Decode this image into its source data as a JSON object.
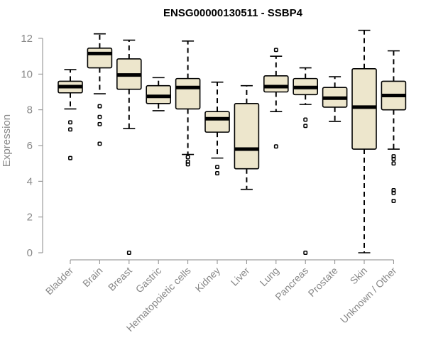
{
  "chart_data": {
    "type": "boxplot",
    "title": "ENSG00000130511 - SSBP4",
    "xlabel": "",
    "ylabel": "Expression",
    "ylim": [
      0,
      12.5
    ],
    "yticks": [
      0,
      2,
      4,
      6,
      8,
      10,
      12
    ],
    "box_color": "#ede6cc",
    "categories": [
      "Bladder",
      "Brain",
      "Breast",
      "Gastric",
      "Hematopoietic cells",
      "Kidney",
      "Liver",
      "Lung",
      "Pancreas",
      "Prostate",
      "Skin",
      "Unknown / Other"
    ],
    "boxes": [
      {
        "min": 8.05,
        "q1": 8.95,
        "median": 9.3,
        "q3": 9.6,
        "max": 10.25,
        "outliers": [
          7.3,
          6.9,
          5.3
        ]
      },
      {
        "min": 8.9,
        "q1": 10.35,
        "median": 11.15,
        "q3": 11.45,
        "max": 12.25,
        "outliers": [
          8.2,
          7.6,
          7.2,
          6.1
        ]
      },
      {
        "min": 6.95,
        "q1": 9.15,
        "median": 9.95,
        "q3": 10.85,
        "max": 11.9,
        "outliers": [
          0.0
        ]
      },
      {
        "min": 7.95,
        "q1": 8.35,
        "median": 8.75,
        "q3": 9.35,
        "max": 9.8,
        "outliers": []
      },
      {
        "min": 5.5,
        "q1": 8.05,
        "median": 9.25,
        "q3": 9.75,
        "max": 11.85,
        "outliers": [
          5.35,
          5.1,
          4.95
        ]
      },
      {
        "min": 5.3,
        "q1": 6.75,
        "median": 7.5,
        "q3": 7.9,
        "max": 9.55,
        "outliers": [
          4.8,
          4.45
        ]
      },
      {
        "min": 3.55,
        "q1": 4.7,
        "median": 5.8,
        "q3": 8.35,
        "max": 9.35,
        "outliers": []
      },
      {
        "min": 7.9,
        "q1": 9.0,
        "median": 9.3,
        "q3": 9.9,
        "max": 11.0,
        "outliers": [
          11.35,
          5.95
        ]
      },
      {
        "min": 8.3,
        "q1": 8.85,
        "median": 9.25,
        "q3": 9.75,
        "max": 10.35,
        "outliers": [
          7.45,
          7.1,
          0.0
        ]
      },
      {
        "min": 7.35,
        "q1": 8.15,
        "median": 8.65,
        "q3": 9.25,
        "max": 9.85,
        "outliers": []
      },
      {
        "min": 0.0,
        "q1": 5.8,
        "median": 8.15,
        "q3": 10.3,
        "max": 12.45,
        "outliers": []
      },
      {
        "min": 5.8,
        "q1": 8.0,
        "median": 8.8,
        "q3": 9.6,
        "max": 11.3,
        "outliers": [
          5.4,
          5.25,
          5.0,
          3.5,
          3.35,
          2.9
        ]
      }
    ]
  }
}
